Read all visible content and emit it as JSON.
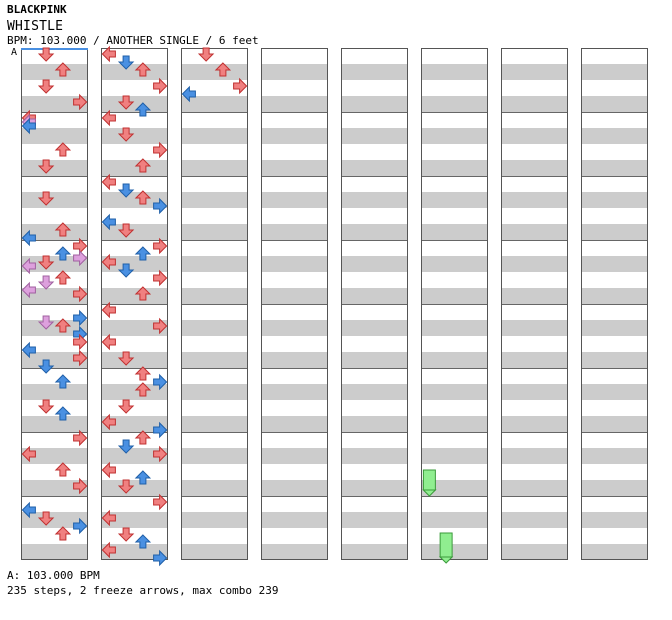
{
  "header": {
    "artist": "BLACKPINK",
    "title": "WHISTLE",
    "info": "BPM: 103.000 / ANOTHER SINGLE / 6 feet"
  },
  "chart_meta": {
    "bpm_marker": "A",
    "columns": 8,
    "measures_per_column": 8,
    "beats_per_measure": 4,
    "lanes": [
      "left",
      "down",
      "up",
      "right"
    ],
    "colors": {
      "quarter": "#f08080",
      "eighth": "#4a90e2",
      "sixteenth": "#dda0dd",
      "freeze": "#90ee90",
      "band": "#cccccc"
    }
  },
  "footer": {
    "bpm_line": "A: 103.000 BPM",
    "summary": "235 steps, 2 freeze arrows, max combo 239"
  },
  "notes": [
    [
      [
        0,
        [
          0,
          1,
          0,
          0
        ]
      ],
      [
        1,
        [
          0,
          0,
          1,
          0
        ]
      ],
      [
        2,
        [
          0,
          1,
          0,
          0
        ]
      ],
      [
        3,
        [
          0,
          0,
          0,
          1
        ]
      ]
    ],
    [
      [
        4,
        [
          1,
          0,
          0,
          0
        ]
      ],
      [
        4.25,
        [
          1,
          0,
          0,
          0
        ]
      ],
      [
        4.5,
        [
          1,
          0,
          0,
          0
        ]
      ],
      [
        6,
        [
          0,
          0,
          1,
          0
        ]
      ],
      [
        7,
        [
          0,
          1,
          0,
          0
        ]
      ]
    ],
    [
      [
        9,
        [
          0,
          1,
          0,
          0
        ]
      ],
      [
        11,
        [
          0,
          0,
          1,
          0
        ]
      ],
      [
        11.5,
        [
          1,
          0,
          0,
          0
        ]
      ],
      [
        12,
        [
          0,
          0,
          0,
          1
        ]
      ],
      [
        12.5,
        [
          0,
          0,
          1,
          0
        ]
      ],
      [
        12.75,
        [
          0,
          0,
          0,
          1
        ]
      ],
      [
        13,
        [
          0,
          1,
          0,
          0
        ]
      ],
      [
        13.25,
        [
          1,
          0,
          0,
          0
        ]
      ]
    ],
    [
      [
        14,
        [
          0,
          0,
          1,
          0
        ]
      ],
      [
        14.25,
        [
          0,
          1,
          0,
          0
        ]
      ],
      [
        14.75,
        [
          1,
          0,
          0,
          0
        ]
      ],
      [
        15,
        [
          0,
          0,
          0,
          1
        ]
      ],
      [
        16.5,
        [
          0,
          0,
          0,
          1
        ]
      ],
      [
        16.75,
        [
          0,
          1,
          0,
          0
        ]
      ],
      [
        17,
        [
          0,
          0,
          1,
          0
        ]
      ],
      [
        17.5,
        [
          0,
          0,
          0,
          1
        ]
      ]
    ],
    [
      [
        18,
        [
          0,
          0,
          0,
          1
        ]
      ],
      [
        18.5,
        [
          1,
          0,
          0,
          0
        ]
      ],
      [
        19,
        [
          0,
          0,
          0,
          1
        ]
      ],
      [
        19.5,
        [
          0,
          1,
          0,
          0
        ]
      ],
      [
        20.5,
        [
          0,
          0,
          1,
          0
        ]
      ],
      [
        22,
        [
          0,
          1,
          0,
          0
        ]
      ],
      [
        22.5,
        [
          0,
          0,
          1,
          0
        ]
      ]
    ],
    [
      [
        24,
        [
          0,
          0,
          0,
          1
        ]
      ],
      [
        25,
        [
          1,
          0,
          0,
          0
        ]
      ],
      [
        26,
        [
          0,
          0,
          1,
          0
        ]
      ],
      [
        27,
        [
          0,
          0,
          0,
          1
        ]
      ],
      [
        28.5,
        [
          1,
          0,
          0,
          0
        ]
      ],
      [
        29,
        [
          0,
          1,
          0,
          0
        ]
      ],
      [
        29.5,
        [
          0,
          0,
          0,
          1
        ]
      ],
      [
        30,
        [
          0,
          0,
          1,
          0
        ]
      ]
    ],
    [
      [
        32,
        [
          1,
          0,
          0,
          0
        ]
      ],
      [
        32.5,
        [
          0,
          1,
          0,
          0
        ]
      ],
      [
        33,
        [
          0,
          0,
          1,
          0
        ]
      ],
      [
        34,
        [
          0,
          0,
          0,
          1
        ]
      ],
      [
        35,
        [
          0,
          1,
          0,
          0
        ]
      ],
      [
        35.5,
        [
          0,
          0,
          1,
          0
        ]
      ],
      [
        36,
        [
          1,
          0,
          0,
          0
        ]
      ],
      [
        37,
        [
          0,
          1,
          0,
          0
        ]
      ]
    ],
    [
      [
        38,
        [
          0,
          0,
          0,
          1
        ]
      ],
      [
        39,
        [
          0,
          0,
          1,
          0
        ]
      ],
      [
        40,
        [
          1,
          0,
          0,
          0
        ]
      ],
      [
        40.5,
        [
          0,
          1,
          0,
          0
        ]
      ],
      [
        41,
        [
          0,
          0,
          1,
          0
        ]
      ],
      [
        41.5,
        [
          0,
          0,
          0,
          1
        ]
      ],
      [
        42.5,
        [
          1,
          0,
          0,
          0
        ]
      ],
      [
        43,
        [
          0,
          1,
          0,
          0
        ]
      ]
    ],
    [
      [
        44,
        [
          0,
          0,
          0,
          1
        ]
      ],
      [
        44.5,
        [
          0,
          0,
          1,
          0
        ]
      ],
      [
        45,
        [
          1,
          0,
          0,
          0
        ]
      ],
      [
        45.5,
        [
          0,
          1,
          0,
          0
        ]
      ],
      [
        46,
        [
          0,
          0,
          0,
          1
        ]
      ],
      [
        47,
        [
          0,
          0,
          1,
          0
        ]
      ],
      [
        48,
        [
          1,
          0,
          0,
          0
        ]
      ],
      [
        49,
        [
          0,
          0,
          0,
          1
        ]
      ]
    ],
    [
      [
        50,
        [
          1,
          0,
          0,
          0
        ]
      ],
      [
        51,
        [
          0,
          1,
          0,
          0
        ]
      ],
      [
        52,
        [
          0,
          0,
          1,
          0
        ]
      ],
      [
        52.5,
        [
          0,
          0,
          0,
          1
        ]
      ],
      [
        53,
        [
          0,
          0,
          1,
          0
        ]
      ],
      [
        54,
        [
          0,
          1,
          0,
          0
        ]
      ],
      [
        55,
        [
          1,
          0,
          0,
          0
        ]
      ],
      [
        55.5,
        [
          0,
          0,
          0,
          1
        ]
      ]
    ],
    [
      [
        56,
        [
          0,
          0,
          1,
          0
        ]
      ],
      [
        56.5,
        [
          0,
          1,
          0,
          0
        ]
      ],
      [
        57,
        [
          0,
          0,
          0,
          1
        ]
      ],
      [
        58,
        [
          1,
          0,
          0,
          0
        ]
      ],
      [
        58.5,
        [
          0,
          0,
          1,
          0
        ]
      ],
      [
        59,
        [
          0,
          1,
          0,
          0
        ]
      ],
      [
        60,
        [
          0,
          0,
          0,
          1
        ]
      ],
      [
        61,
        [
          1,
          0,
          0,
          0
        ]
      ]
    ],
    [
      [
        62,
        [
          0,
          1,
          0,
          0
        ]
      ],
      [
        62.5,
        [
          0,
          0,
          1,
          0
        ]
      ],
      [
        63,
        [
          1,
          0,
          0,
          0
        ]
      ],
      [
        63.5,
        [
          0,
          0,
          0,
          1
        ]
      ],
      [
        64,
        [
          0,
          1,
          0,
          0
        ]
      ],
      [
        65,
        [
          0,
          0,
          1,
          0
        ]
      ],
      [
        66,
        [
          0,
          0,
          0,
          1
        ]
      ],
      [
        66.5,
        [
          1,
          0,
          0,
          0
        ]
      ]
    ]
  ]
}
